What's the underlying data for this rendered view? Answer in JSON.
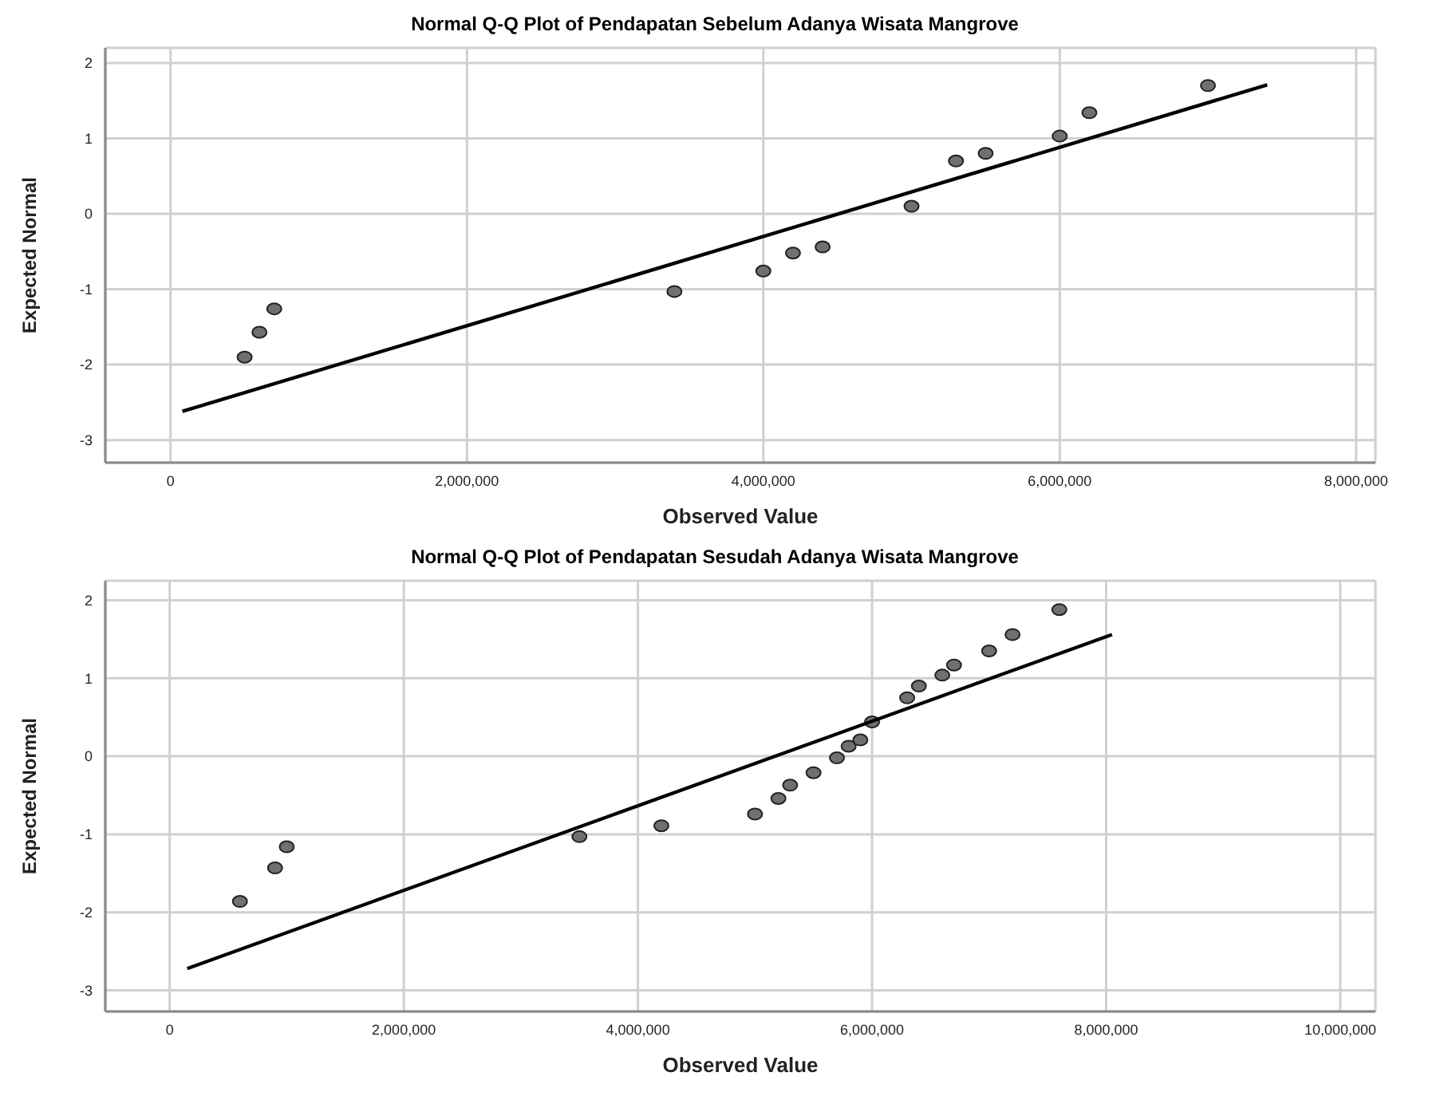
{
  "chart_data": [
    {
      "type": "scatter",
      "title": "Normal Q-Q Plot of Pendapatan Sebelum Adanya Wisata Mangrove",
      "xlabel": "Observed Value",
      "ylabel": "Expected Normal",
      "grid": true,
      "legend": false,
      "marker": "circle",
      "xlim": [
        -440000,
        8130000
      ],
      "xticks": [
        {
          "value": 0,
          "label": "0"
        },
        {
          "value": 2000000,
          "label": "2,000,000"
        },
        {
          "value": 4000000,
          "label": "4,000,000"
        },
        {
          "value": 6000000,
          "label": "6,000,000"
        },
        {
          "value": 8000000,
          "label": "8,000,000"
        }
      ],
      "ylim": [
        -3.3,
        2.2
      ],
      "yticks": [
        2,
        1,
        0,
        -1,
        -2,
        -3
      ],
      "series": [
        {
          "type": "scatter",
          "color": "#707070",
          "x": [
            500000,
            600000,
            700000,
            3400000,
            4000000,
            4200000,
            4400000,
            5000000,
            5300000,
            5500000,
            6000000,
            6200000,
            7000000
          ],
          "values": [
            -1.9,
            -1.57,
            -1.26,
            -1.03,
            -0.76,
            -0.52,
            -0.44,
            0.1,
            0.7,
            0.8,
            1.03,
            1.34,
            1.7
          ]
        },
        {
          "type": "line",
          "color": "#000000",
          "marker": "none",
          "x": [
            80000,
            7400000
          ],
          "values": [
            -2.62,
            1.71
          ]
        }
      ]
    },
    {
      "type": "scatter",
      "title": "Normal Q-Q Plot of Pendapatan Sesudah Adanya Wisata Mangrove",
      "xlabel": "Observed Value",
      "ylabel": "Expected Normal",
      "grid": true,
      "legend": false,
      "marker": "circle",
      "xlim": [
        -550000,
        10300000
      ],
      "xticks": [
        {
          "value": 0,
          "label": "0"
        },
        {
          "value": 2000000,
          "label": "2,000,000"
        },
        {
          "value": 4000000,
          "label": "4,000,000"
        },
        {
          "value": 6000000,
          "label": "6,000,000"
        },
        {
          "value": 8000000,
          "label": "8,000,000"
        },
        {
          "value": 10000000,
          "label": "10,000,000"
        }
      ],
      "ylim": [
        -3.27,
        2.25
      ],
      "yticks": [
        2,
        1,
        0,
        -1,
        -2,
        -3
      ],
      "series": [
        {
          "type": "scatter",
          "color": "#707070",
          "x": [
            600000,
            900000,
            1000000,
            3500000,
            4200000,
            5000000,
            5200000,
            5300000,
            5500000,
            5700000,
            5800000,
            5900000,
            6000000,
            6300000,
            6400000,
            6600000,
            6700000,
            7000000,
            7200000,
            7600000
          ],
          "values": [
            -1.86,
            -1.43,
            -1.16,
            -1.03,
            -0.89,
            -0.74,
            -0.54,
            -0.37,
            -0.21,
            -0.02,
            0.13,
            0.21,
            0.44,
            0.75,
            0.9,
            1.04,
            1.17,
            1.35,
            1.56,
            1.88
          ]
        },
        {
          "type": "line",
          "color": "#000000",
          "marker": "none",
          "x": [
            150000,
            8050000
          ],
          "values": [
            -2.72,
            1.56
          ]
        }
      ]
    }
  ]
}
